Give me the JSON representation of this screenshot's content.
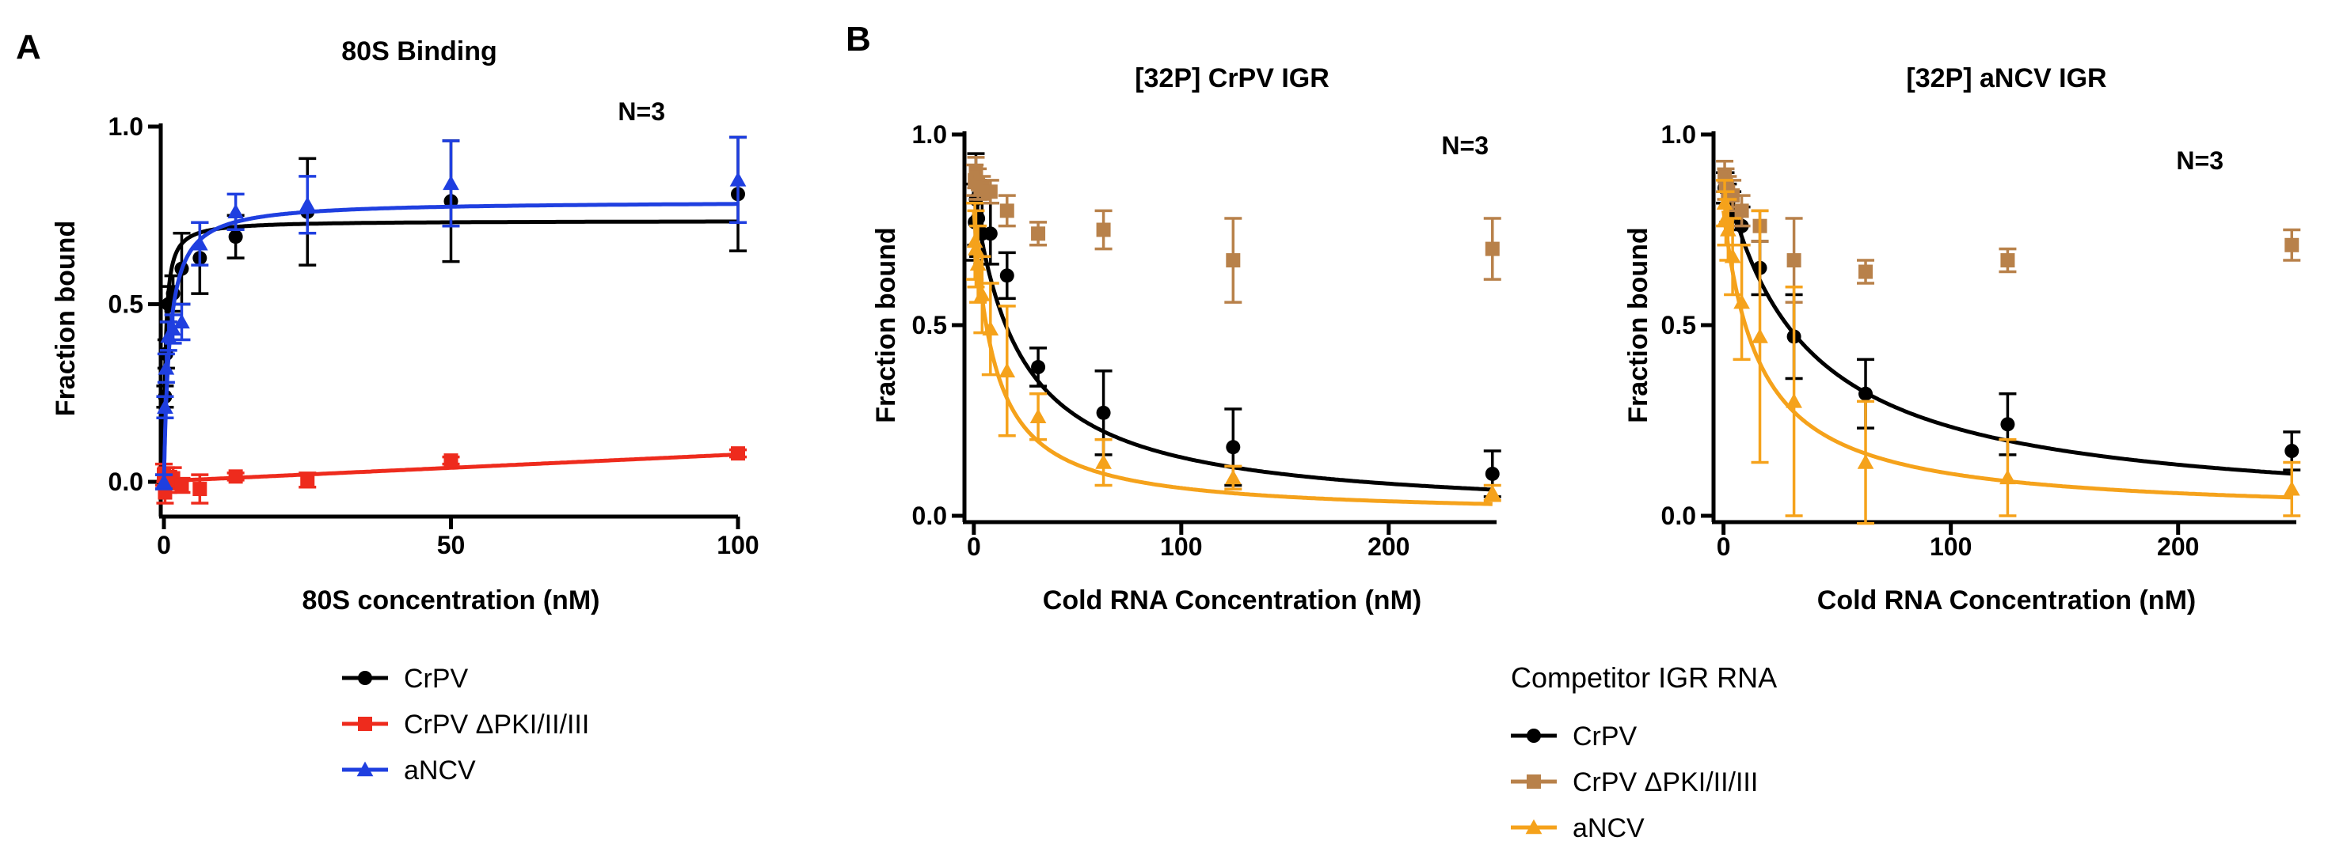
{
  "panels": [
    {
      "letter": "A"
    },
    {
      "letter": "B"
    }
  ],
  "legends": [
    {
      "title": "",
      "entries": [
        {
          "name": "CrPV",
          "color": "#000000",
          "marker": "circle"
        },
        {
          "name": "CrPV ΔPKI/II/III",
          "color": "#ee2b1d",
          "marker": "square"
        },
        {
          "name": "aNCV",
          "color": "#1f3fe0",
          "marker": "triangle"
        }
      ]
    },
    {
      "title": "Competitor IGR RNA",
      "entries": [
        {
          "name": "CrPV",
          "color": "#000000",
          "marker": "circle"
        },
        {
          "name": "CrPV ΔPKI/II/III",
          "color": "#b8814a",
          "marker": "square"
        },
        {
          "name": "aNCV",
          "color": "#f5a21b",
          "marker": "triangle"
        }
      ]
    }
  ],
  "chart_data": [
    {
      "type": "scatter",
      "title": "80S Binding",
      "xlabel": "80S concentration (nM)",
      "ylabel": "Fraction bound",
      "annotation": "N=3",
      "xlim": [
        0,
        100
      ],
      "ylim": [
        -0.08,
        1.0
      ],
      "xticks": [
        0,
        50,
        100
      ],
      "xtick_labels": [
        "0",
        "50",
        "100"
      ],
      "yticks": [
        0,
        0.5,
        1.0
      ],
      "ytick_labels": [
        "0.0",
        "0.5",
        "1.0"
      ],
      "x": [
        0,
        0.2,
        0.4,
        0.8,
        1.6,
        3.1,
        6.25,
        12.5,
        25,
        50,
        100
      ],
      "series": [
        {
          "name": "CrPV",
          "color": "#000000",
          "marker": "circle",
          "values": [
            0.0,
            0.24,
            0.36,
            0.5,
            0.53,
            0.6,
            0.63,
            0.69,
            0.76,
            0.79,
            0.81
          ],
          "errors": [
            0.02,
            0.03,
            0.04,
            0.05,
            0.05,
            0.1,
            0.1,
            0.06,
            0.15,
            0.17,
            0.16
          ],
          "fit": {
            "model": "hyperbolic",
            "bmax": 0.735,
            "kd": 0.3
          }
        },
        {
          "name": "CrPV ΔPKI/II/III",
          "color": "#ee2b1d",
          "marker": "square",
          "values": [
            0.02,
            -0.03,
            0.01,
            0.0,
            0.01,
            -0.01,
            -0.02,
            0.015,
            0.005,
            0.06,
            0.08
          ],
          "errors": [
            0.03,
            0.03,
            0.03,
            0.03,
            0.03,
            0.02,
            0.04,
            0.01,
            0.02,
            0.01,
            0.01
          ],
          "fit": {
            "model": "linear",
            "slope": 0.00075,
            "intercept": 0.002
          }
        },
        {
          "name": "aNCV",
          "color": "#1f3fe0",
          "marker": "triangle",
          "values": [
            0.0,
            0.21,
            0.32,
            0.41,
            0.43,
            0.45,
            0.67,
            0.76,
            0.78,
            0.84,
            0.85
          ],
          "errors": [
            0.02,
            0.03,
            0.04,
            0.04,
            0.04,
            0.05,
            0.06,
            0.05,
            0.08,
            0.12,
            0.12
          ],
          "fit": {
            "model": "hyperbolic",
            "bmax": 0.79,
            "kd": 1.0
          }
        }
      ]
    },
    {
      "type": "scatter",
      "title": "[32P] CrPV IGR",
      "xlabel": "Cold RNA Concentration (nM)",
      "ylabel": "Fraction bound",
      "annotation": "N=3",
      "xlim": [
        -3,
        252
      ],
      "ylim": [
        0,
        1.0
      ],
      "xticks": [
        0,
        100,
        200
      ],
      "xtick_labels": [
        "0",
        "100",
        "200"
      ],
      "yticks": [
        0,
        0.5,
        1.0
      ],
      "ytick_labels": [
        "0.0",
        "0.5",
        "1.0"
      ],
      "x": [
        0.5,
        1,
        2,
        4,
        8,
        16,
        31,
        62.5,
        125,
        250
      ],
      "series": [
        {
          "name": "CrPV",
          "color": "#000000",
          "marker": "circle",
          "values": [
            0.77,
            0.83,
            0.78,
            0.74,
            0.74,
            0.63,
            0.39,
            0.27,
            0.18,
            0.11
          ],
          "errors": [
            0.1,
            0.12,
            0.1,
            0.08,
            0.08,
            0.06,
            0.05,
            0.11,
            0.1,
            0.06
          ],
          "fit": {
            "model": "competition",
            "top": 0.85,
            "ic50": 22
          }
        },
        {
          "name": "CrPV ΔPKI/II/III",
          "color": "#b8814a",
          "marker": "square",
          "values": [
            0.88,
            0.9,
            0.87,
            0.86,
            0.85,
            0.8,
            0.74,
            0.75,
            0.67,
            0.7
          ],
          "errors": [
            0.04,
            0.04,
            0.04,
            0.03,
            0.03,
            0.04,
            0.03,
            0.05,
            0.11,
            0.08
          ],
          "fit": null
        },
        {
          "name": "aNCV",
          "color": "#f5a21b",
          "marker": "triangle",
          "values": [
            0.72,
            0.7,
            0.66,
            0.58,
            0.49,
            0.38,
            0.26,
            0.14,
            0.1,
            0.06
          ],
          "errors": [
            0.1,
            0.1,
            0.1,
            0.1,
            0.12,
            0.17,
            0.06,
            0.06,
            0.03,
            0.02
          ],
          "fit": {
            "model": "competition",
            "top": 0.8,
            "ic50": 10
          }
        }
      ]
    },
    {
      "type": "scatter",
      "title": "[32P] aNCV IGR",
      "xlabel": "Cold RNA Concentration (nM)",
      "ylabel": "Fraction bound",
      "annotation": "N=3",
      "xlim": [
        -3,
        252
      ],
      "ylim": [
        0,
        1.0
      ],
      "xticks": [
        0,
        100,
        200
      ],
      "xtick_labels": [
        "0",
        "100",
        "200"
      ],
      "yticks": [
        0,
        0.5,
        1.0
      ],
      "ytick_labels": [
        "0.0",
        "0.5",
        "1.0"
      ],
      "x": [
        0.5,
        1,
        2,
        4,
        8,
        16,
        31,
        62.5,
        125,
        250
      ],
      "series": [
        {
          "name": "CrPV",
          "color": "#000000",
          "marker": "circle",
          "values": [
            0.86,
            0.86,
            0.82,
            0.8,
            0.76,
            0.65,
            0.47,
            0.32,
            0.24,
            0.17
          ],
          "errors": [
            0.04,
            0.04,
            0.05,
            0.05,
            0.05,
            0.07,
            0.11,
            0.09,
            0.08,
            0.05
          ],
          "fit": {
            "model": "competition",
            "top": 0.9,
            "ic50": 35
          }
        },
        {
          "name": "CrPV ΔPKI/II/III",
          "color": "#b8814a",
          "marker": "square",
          "values": [
            0.89,
            0.87,
            0.85,
            0.84,
            0.8,
            0.76,
            0.67,
            0.64,
            0.67,
            0.71
          ],
          "errors": [
            0.04,
            0.04,
            0.04,
            0.04,
            0.04,
            0.04,
            0.11,
            0.03,
            0.03,
            0.04
          ],
          "fit": null
        },
        {
          "name": "aNCV",
          "color": "#f5a21b",
          "marker": "triangle",
          "values": [
            0.82,
            0.78,
            0.75,
            0.68,
            0.56,
            0.47,
            0.3,
            0.14,
            0.1,
            0.07
          ],
          "errors": [
            0.06,
            0.07,
            0.08,
            0.1,
            0.15,
            0.33,
            0.3,
            0.16,
            0.1,
            0.07
          ],
          "fit": {
            "model": "competition",
            "top": 0.8,
            "ic50": 16
          }
        }
      ]
    }
  ]
}
